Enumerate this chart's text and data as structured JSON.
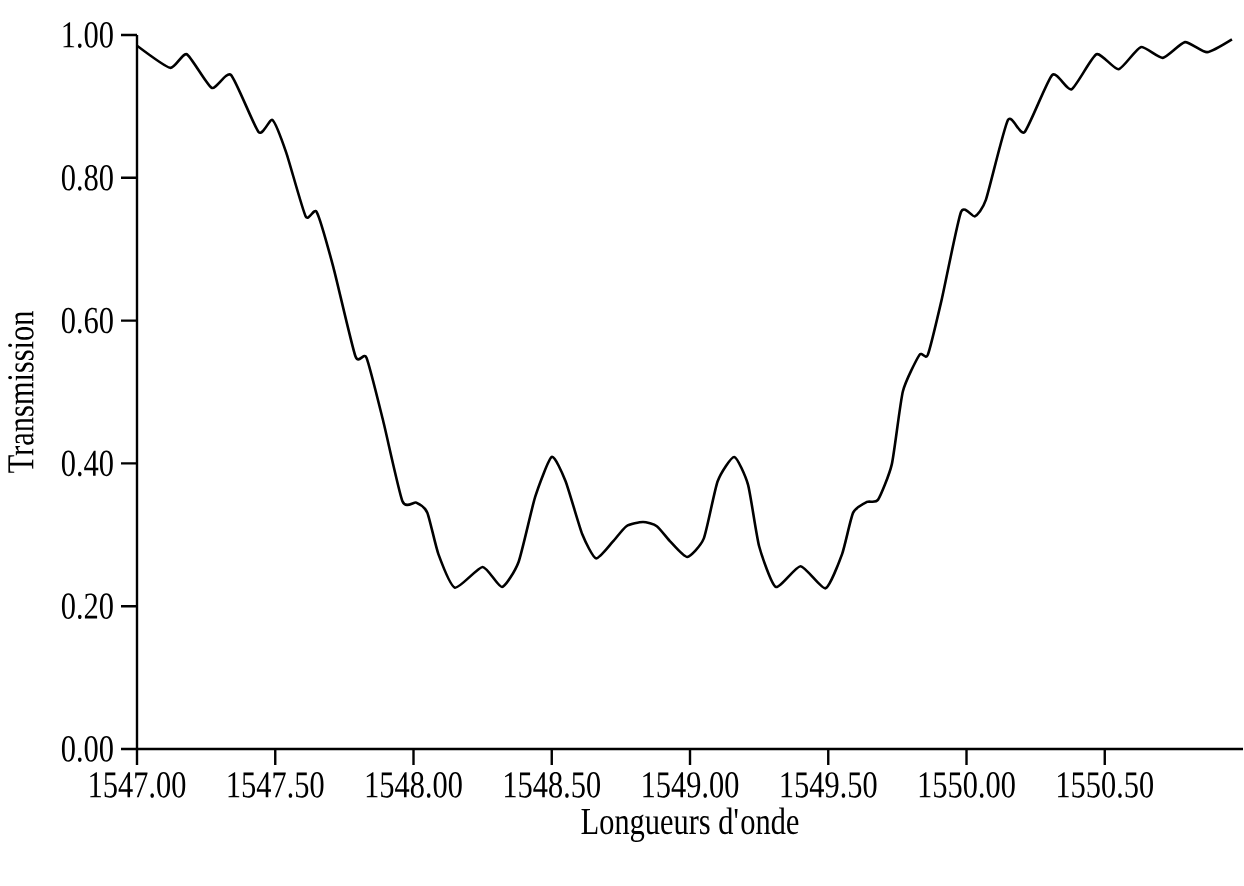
{
  "chart_data": {
    "type": "line",
    "xlabel": "Longueurs d'onde",
    "ylabel": "Transmission",
    "x": [
      1547.0,
      1547.12,
      1547.18,
      1547.27,
      1547.34,
      1547.44,
      1547.49,
      1547.54,
      1547.61,
      1547.65,
      1547.71,
      1547.79,
      1547.83,
      1547.89,
      1547.96,
      1548.01,
      1548.05,
      1548.09,
      1548.15,
      1548.25,
      1548.32,
      1548.38,
      1548.44,
      1548.5,
      1548.55,
      1548.61,
      1548.66,
      1548.72,
      1548.77,
      1548.83,
      1548.88,
      1548.93,
      1548.99,
      1549.05,
      1549.1,
      1549.16,
      1549.21,
      1549.25,
      1549.31,
      1549.4,
      1549.49,
      1549.55,
      1549.59,
      1549.64,
      1549.68,
      1549.73,
      1549.77,
      1549.83,
      1549.86,
      1549.91,
      1549.98,
      1550.03,
      1550.07,
      1550.15,
      1550.21,
      1550.31,
      1550.38,
      1550.47,
      1550.55,
      1550.63,
      1550.71,
      1550.79,
      1550.87,
      1550.96
    ],
    "values": [
      0.985,
      0.954,
      0.973,
      0.926,
      0.944,
      0.864,
      0.881,
      0.835,
      0.746,
      0.752,
      0.675,
      0.55,
      0.548,
      0.46,
      0.347,
      0.345,
      0.331,
      0.273,
      0.226,
      0.255,
      0.227,
      0.262,
      0.353,
      0.409,
      0.375,
      0.301,
      0.267,
      0.29,
      0.312,
      0.318,
      0.312,
      0.29,
      0.269,
      0.295,
      0.375,
      0.409,
      0.37,
      0.284,
      0.227,
      0.256,
      0.225,
      0.273,
      0.331,
      0.346,
      0.349,
      0.399,
      0.501,
      0.552,
      0.552,
      0.629,
      0.752,
      0.746,
      0.769,
      0.881,
      0.864,
      0.944,
      0.924,
      0.973,
      0.952,
      0.983,
      0.968,
      0.99,
      0.976,
      0.994
    ],
    "color": "#000000",
    "xlim": [
      1547,
      1551
    ],
    "ylim": [
      0,
      1
    ],
    "xticks": [
      {
        "value": 1547,
        "label": "1547.00"
      },
      {
        "value": 1547.5,
        "label": "1547.50"
      },
      {
        "value": 1548,
        "label": "1548.00"
      },
      {
        "value": 1548.5,
        "label": "1548.50"
      },
      {
        "value": 1549,
        "label": "1549.00"
      },
      {
        "value": 1549.5,
        "label": "1549.50"
      },
      {
        "value": 1550,
        "label": "1550.00"
      },
      {
        "value": 1550.5,
        "label": "1550.50"
      }
    ],
    "yticks": [
      {
        "value": 0,
        "label": "0.00"
      },
      {
        "value": 0.2,
        "label": "0.20"
      },
      {
        "value": 0.4,
        "label": "0.40"
      },
      {
        "value": 0.6,
        "label": "0.60"
      },
      {
        "value": 0.8,
        "label": "0.80"
      },
      {
        "value": 1,
        "label": "1.00"
      }
    ]
  }
}
